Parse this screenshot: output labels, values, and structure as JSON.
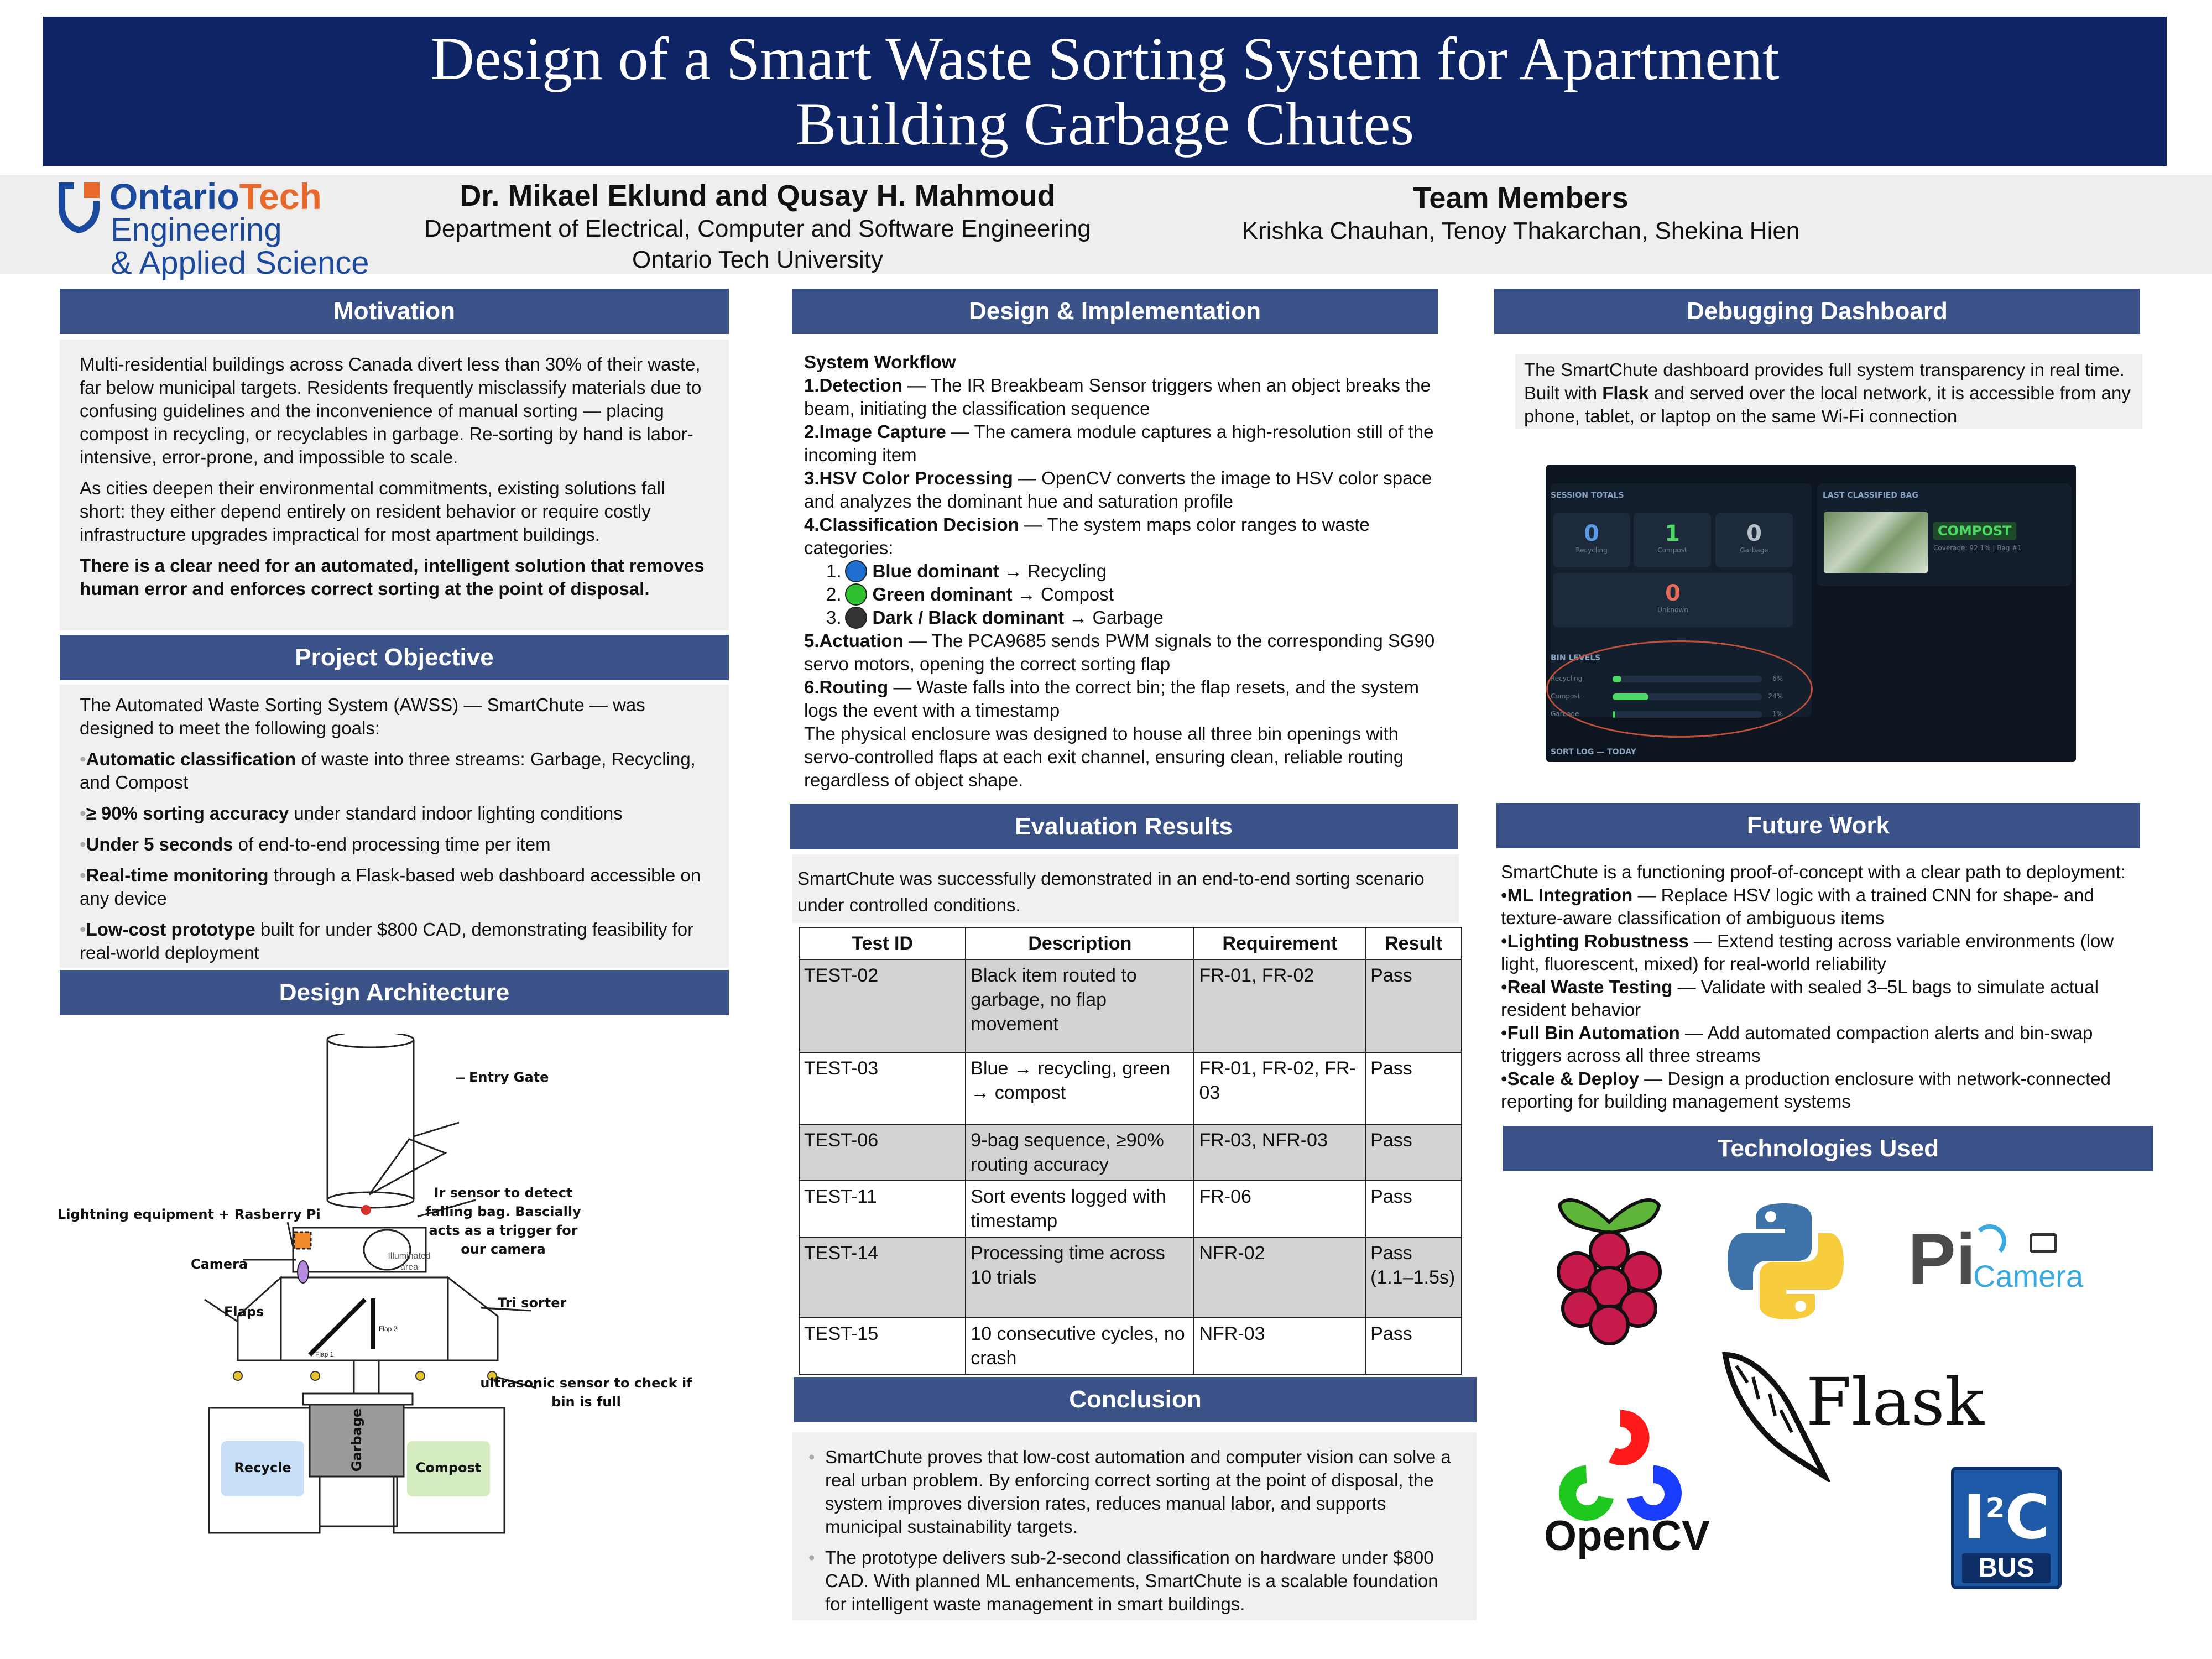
{
  "poster": {
    "title_line1": "Design of a Smart Waste Sorting System for Apartment",
    "title_line2": "Building Garbage Chutes"
  },
  "logo": {
    "brand_ontario": "Ontario",
    "brand_tech": "Tech",
    "line1": "Engineering",
    "line2": "& Applied Science",
    "brand_color": "#1b4a9c",
    "accent_color": "#e9692c"
  },
  "authors": {
    "names": "Dr. Mikael Eklund and Qusay H. Mahmoud",
    "department": "Department of Electrical, Computer and Software Engineering",
    "university": "Ontario Tech University"
  },
  "team": {
    "heading": "Team Members",
    "members": "Krishka Chauhan, Tenoy Thakarchan, Shekina Hien"
  },
  "motivation": {
    "heading": "Motivation",
    "p1": "Multi-residential buildings across Canada divert less than 30% of their waste, far below municipal targets. Residents frequently misclassify materials due to confusing guidelines and the inconvenience of manual sorting — placing compost in recycling, or recyclables in garbage. Re-sorting by hand is labor-intensive, error-prone, and impossible to scale.",
    "p2": "As cities deepen their environmental commitments, existing solutions fall short: they either depend entirely on resident behavior or require costly infrastructure upgrades impractical for most apartment buildings.",
    "p3": "There is a clear need for an automated, intelligent solution that removes human error and enforces correct sorting at the point of disposal."
  },
  "objective": {
    "heading": "Project Objective",
    "intro": "The Automated Waste Sorting System (AWSS) — SmartChute — was designed to meet the following goals:",
    "goals": [
      {
        "bold": "Automatic classification",
        "rest": " of waste into three streams: Garbage, Recycling, and Compost"
      },
      {
        "bold": "≥ 90% sorting accuracy",
        "rest": " under standard indoor lighting conditions"
      },
      {
        "bold": "Under 5 seconds",
        "rest": " of end-to-end processing time per item"
      },
      {
        "bold": "Real-time monitoring",
        "rest": " through a Flask-based web dashboard accessible on any device"
      },
      {
        "bold": "Low-cost prototype",
        "rest": " built for under $800 CAD, demonstrating feasibility for real-world deployment"
      }
    ]
  },
  "architecture": {
    "heading": "Design Architecture",
    "labels": {
      "entry_gate": "Entry Gate",
      "ir1": "Ir sensor to detect",
      "ir2": "falling bag. Bascially",
      "ir3": "acts as a trigger for",
      "ir4": "our camera",
      "lighting": "Lightning equipment + Rasberry Pi",
      "camera": "Camera",
      "illuminated1": "Illuminated",
      "illuminated2": "area",
      "flaps": "Flaps",
      "flap1": "Flap 1",
      "flap2": "Flap 2",
      "tri_sorter": "Tri sorter",
      "ultra1": "ultrasonic sensor to check if",
      "ultra2": "bin is full",
      "recycle": "Recycle",
      "garbage": "Garbage",
      "compost": "Compost"
    }
  },
  "design": {
    "heading": "Design & Implementation",
    "workflow_title": "System Workflow",
    "steps": [
      {
        "num": "1.",
        "bold": "Detection",
        "rest": " — The IR Breakbeam Sensor triggers when an object breaks the beam, initiating the classification sequence"
      },
      {
        "num": "2.",
        "bold": "Image Capture",
        "rest": " — The camera module captures a high-resolution still of the incoming item"
      },
      {
        "num": "3.",
        "bold": "HSV Color Processing",
        "rest": " — OpenCV converts the image to HSV color space and analyzes the dominant hue and saturation profile"
      },
      {
        "num": "4.",
        "bold": "Classification Decision",
        "rest": " — The system maps color ranges to waste categories:"
      }
    ],
    "categories": [
      {
        "num": "1.",
        "color": "#1f6fd1",
        "bold": "Blue dominant",
        "rest": " → Recycling"
      },
      {
        "num": "2.",
        "color": "#2ec02e",
        "bold": "Green dominant",
        "rest": " → Compost"
      },
      {
        "num": "3.",
        "color": "#333333",
        "bold": "Dark / Black dominant",
        "rest": " → Garbage"
      }
    ],
    "steps2": [
      {
        "num": "5.",
        "bold": "Actuation",
        "rest": " — The PCA9685 sends PWM signals to the corresponding SG90 servo motors, opening the correct sorting flap"
      },
      {
        "num": "6.",
        "bold": "Routing",
        "rest": " — Waste falls into the correct bin; the flap resets, and the system logs the event with a timestamp"
      }
    ],
    "enclosure": "The physical enclosure was designed to house all three bin openings with servo-controlled flaps at each exit channel, ensuring clean, reliable routing regardless of object shape."
  },
  "evaluation": {
    "heading": "Evaluation Results",
    "intro": "SmartChute was successfully demonstrated in an end-to-end sorting scenario under controlled conditions.",
    "columns": [
      "Test ID",
      "Description",
      "Requirement",
      "Result"
    ],
    "rows": [
      {
        "id": "TEST-02",
        "desc": "Black item routed to garbage, no flap movement",
        "req": "FR-01, FR-02",
        "res": "Pass"
      },
      {
        "id": "TEST-03",
        "desc": "Blue → recycling, green → compost",
        "req": "FR-01, FR-02, FR-03",
        "res": "Pass"
      },
      {
        "id": "TEST-06",
        "desc": "9-bag sequence, ≥90% routing accuracy",
        "req": "FR-03, NFR-03",
        "res": "Pass"
      },
      {
        "id": "TEST-11",
        "desc": "Sort events logged with timestamp",
        "req": "FR-06",
        "res": "Pass"
      },
      {
        "id": "TEST-14",
        "desc": "Processing time across 10 trials",
        "req": "NFR-02",
        "res": "Pass (1.1–1.5s)"
      },
      {
        "id": "TEST-15",
        "desc": "10 consecutive cycles, no crash",
        "req": "NFR-03",
        "res": "Pass"
      }
    ]
  },
  "conclusion": {
    "heading": "Conclusion",
    "p1": "SmartChute proves that low-cost automation and computer vision can solve a real urban problem. By enforcing correct sorting at the point of disposal, the system improves diversion rates, reduces manual labor, and supports municipal sustainability targets.",
    "p2": "The prototype delivers sub-2-second classification on hardware under $800 CAD. With planned ML enhancements, SmartChute is a scalable foundation for intelligent waste management in smart buildings."
  },
  "dashboard": {
    "heading": "Debugging Dashboard",
    "desc_pre": "The SmartChute dashboard provides full system transparency in real time. Built with ",
    "desc_bold": "Flask",
    "desc_post": " and served over the local network, it is accessible from any phone, tablet, or laptop on the same Wi-Fi connection",
    "session_title": "SESSION TOTALS",
    "tiles": [
      {
        "value": "0",
        "label": "Recycling",
        "color": "#5a9be8"
      },
      {
        "value": "1",
        "label": "Compost",
        "color": "#4cd964"
      },
      {
        "value": "0",
        "label": "Garbage",
        "color": "#b8bfc9"
      }
    ],
    "unknown_value": "0",
    "unknown_label": "Unknown",
    "last_title": "LAST CLASSIFIED BAG",
    "last_class": "COMPOST",
    "last_meta": "Coverage: 92.1% | Bag #1",
    "bin_title": "BIN LEVELS",
    "bins": [
      {
        "name": "Recycling",
        "pct_label": "6%",
        "level": 0.06
      },
      {
        "name": "Compost",
        "pct_label": "24%",
        "level": 0.24
      },
      {
        "name": "Garbage",
        "pct_label": "1%",
        "level": 0.01
      }
    ],
    "sort_log": "SORT LOG — TODAY"
  },
  "future": {
    "heading": "Future Work",
    "intro": "SmartChute is a functioning proof-of-concept with a clear path to deployment:",
    "items": [
      {
        "bold": "ML Integration",
        "rest": " — Replace HSV logic with a trained CNN for shape- and texture-aware classification of ambiguous items"
      },
      {
        "bold": "Lighting Robustness",
        "rest": " — Extend testing across variable environments (low light, fluorescent, mixed) for real-world reliability"
      },
      {
        "bold": "Real Waste Testing",
        "rest": " — Validate with sealed 3–5L bags to simulate actual resident behavior"
      },
      {
        "bold": "Full Bin Automation",
        "rest": " — Add automated compaction alerts and bin-swap triggers across all three streams"
      },
      {
        "bold": "Scale & Deploy",
        "rest": " — Design a production enclosure with network-connected reporting for building management systems"
      }
    ]
  },
  "technologies": {
    "heading": "Technologies Used",
    "flask": "Flask",
    "opencv": "OpenCV",
    "picamera_p": "Pi",
    "picamera_text": "Camera",
    "i2c_top": "I",
    "i2c_sup": "2",
    "i2c_c": "C",
    "i2c_bus": "BUS"
  }
}
